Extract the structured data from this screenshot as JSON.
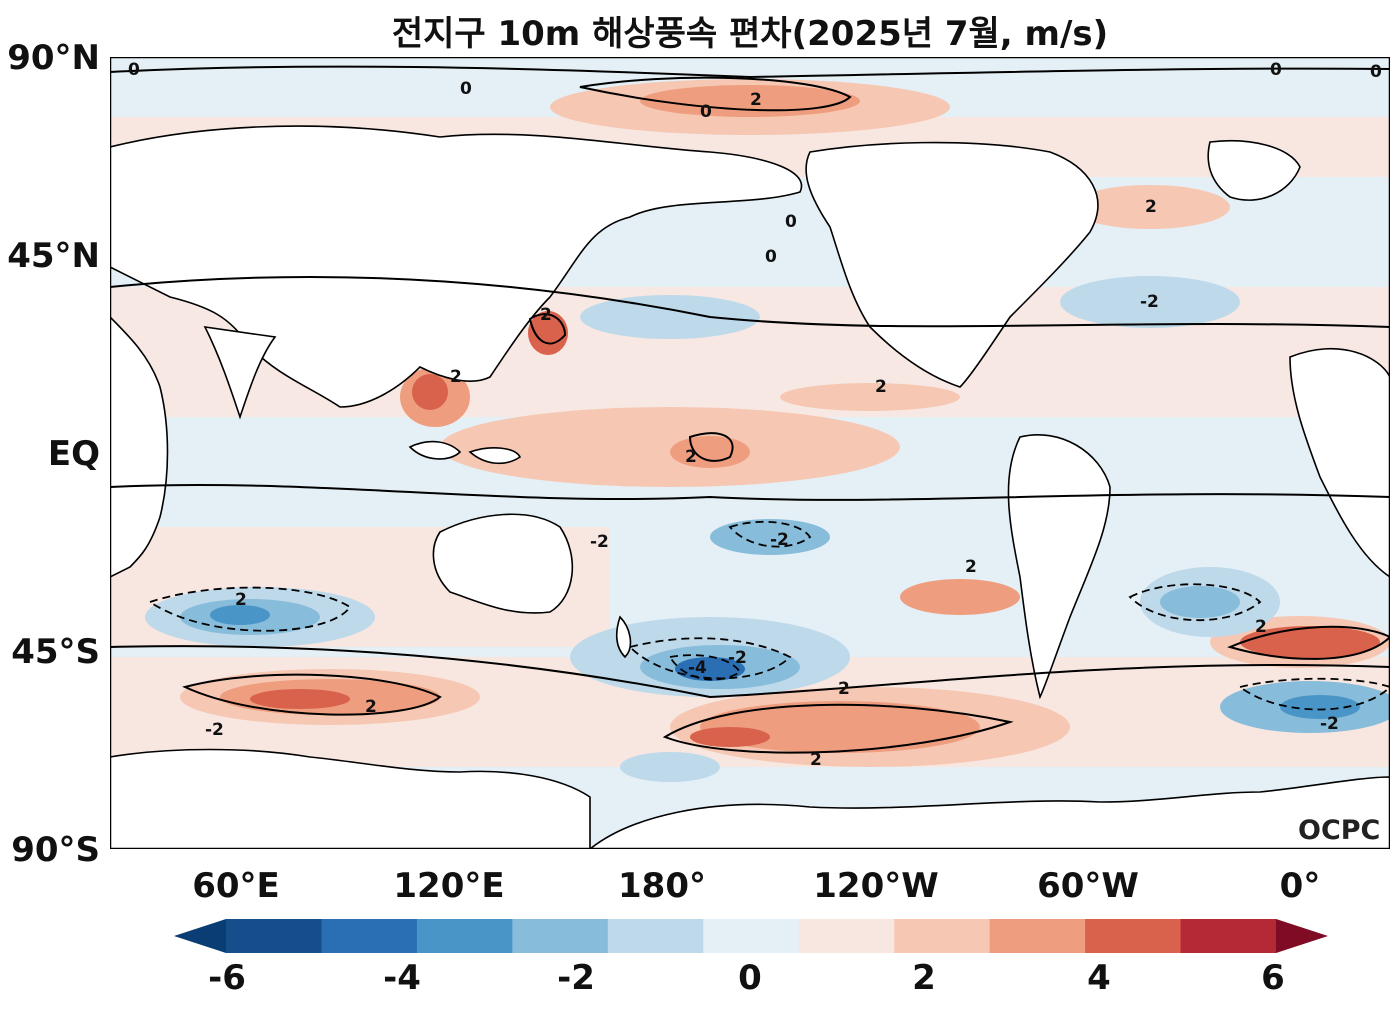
{
  "title": "전지구 10m 해상풍속 편차(2025년 7월, m/s)",
  "logo_text": "OCPC",
  "lat_labels": [
    "90°N",
    "45°N",
    "EQ",
    "45°S",
    "90°S"
  ],
  "lon_labels": [
    "60°E",
    "120°E",
    "180°",
    "120°W",
    "60°W",
    "0°"
  ],
  "colorbar": {
    "labels": [
      "-6",
      "-4",
      "-2",
      "0",
      "2",
      "4",
      "6"
    ],
    "colors": [
      "#0a3d73",
      "#154e8a",
      "#2a6fb3",
      "#4a95c8",
      "#88bcdb",
      "#bdd9ea",
      "#e4eff6",
      "#f8e7e1",
      "#f6c8b3",
      "#ee9e7f",
      "#d8624c",
      "#b52835",
      "#7f0b24"
    ],
    "min": -6,
    "max": 6,
    "step": 1,
    "extend": "both"
  },
  "contour_labels": [
    "0",
    "2",
    "-2",
    "-4"
  ],
  "colors": {
    "land": "#ffffff",
    "coast": "#000000",
    "ocean_neutral_pos": "#f8e7e1",
    "ocean_neutral_neg": "#e4eff6"
  }
}
